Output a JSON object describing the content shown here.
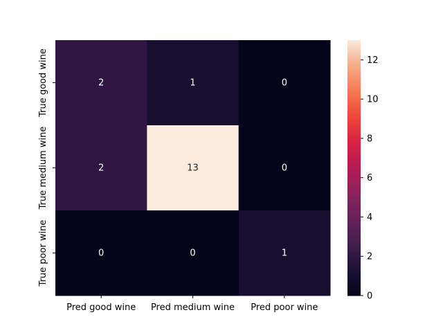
{
  "chart_data": {
    "type": "heatmap",
    "x_labels": [
      "Pred good wine",
      "Pred medium wine",
      "Pred poor wine"
    ],
    "y_labels": [
      "True good wine",
      "True medium wine",
      "True poor wine"
    ],
    "values": [
      [
        2,
        1,
        0
      ],
      [
        2,
        13,
        0
      ],
      [
        0,
        0,
        1
      ]
    ],
    "colorbar": {
      "range": [
        0,
        13
      ],
      "ticks": [
        0,
        2,
        4,
        6,
        8,
        10,
        12
      ],
      "colormap": "rocket"
    },
    "annotations": true
  }
}
